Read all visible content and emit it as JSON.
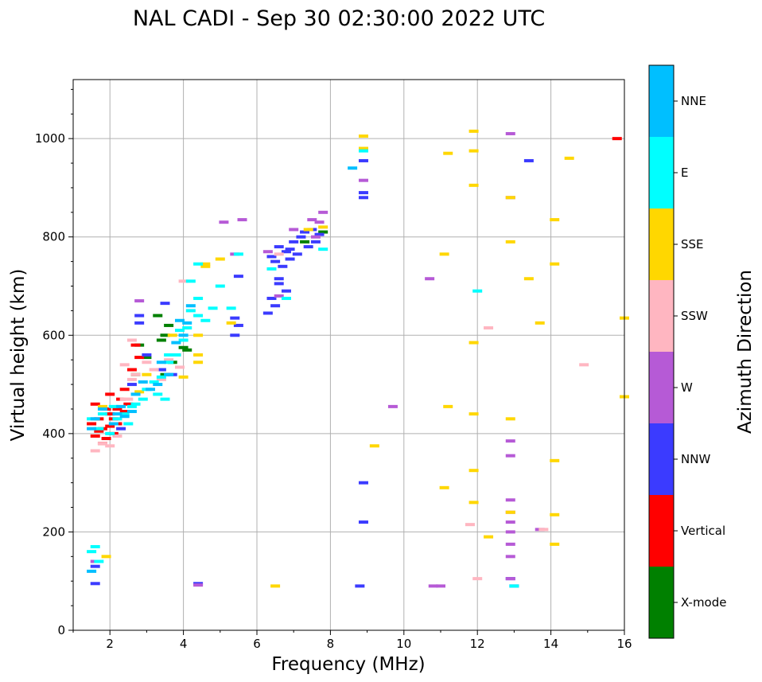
{
  "chart_data": {
    "type": "scatter",
    "title": "NAL CADI - Sep 30 02:30:00 2022 UTC",
    "xlabel": "Frequency (MHz)",
    "ylabel": "Virtual height (km)",
    "xlim": [
      1,
      16
    ],
    "ylim": [
      0,
      1120
    ],
    "grid": true,
    "x_ticks": [
      2,
      4,
      6,
      8,
      10,
      12,
      14,
      16
    ],
    "x_tick_labels": [
      "2",
      "4",
      "6",
      "8",
      "10",
      "12",
      "14",
      "16"
    ],
    "y_ticks": [
      0,
      200,
      400,
      600,
      800,
      1000
    ],
    "y_tick_labels": [
      "0",
      "200",
      "400",
      "600",
      "800",
      "1000"
    ],
    "colorbar": {
      "label": "Azimuth Direction",
      "categories": [
        "X-mode",
        "Vertical",
        "NNW",
        "W",
        "SSW",
        "SSE",
        "E",
        "NNE"
      ],
      "colors": [
        "#008000",
        "#ff0000",
        "#3b3bff",
        "#b65ad6",
        "#ffb6c1",
        "#ffd700",
        "#00ffff",
        "#00bfff"
      ]
    },
    "scatter_notes": "Ionogram echoes; x = frequency (MHz), y = virtual height (km), c = azimuth category. Dense traces are approximated.",
    "series": [
      {
        "name": "X-mode",
        "points": [
          [
            2.8,
            580
          ],
          [
            3.4,
            590
          ],
          [
            3.5,
            600
          ],
          [
            3.7,
            545
          ],
          [
            3.8,
            560
          ],
          [
            4.0,
            575
          ],
          [
            3.3,
            640
          ],
          [
            2.7,
            520
          ],
          [
            3.5,
            520
          ],
          [
            3.0,
            555
          ],
          [
            7.8,
            810
          ],
          [
            7.3,
            790
          ],
          [
            3.6,
            620
          ],
          [
            4.1,
            570
          ]
        ]
      },
      {
        "name": "Vertical",
        "points": [
          [
            1.5,
            420
          ],
          [
            1.6,
            395
          ],
          [
            1.7,
            430
          ],
          [
            1.8,
            410
          ],
          [
            1.9,
            450
          ],
          [
            2.0,
            440
          ],
          [
            2.1,
            400
          ],
          [
            2.2,
            420
          ],
          [
            2.3,
            470
          ],
          [
            2.4,
            490
          ],
          [
            1.6,
            460
          ],
          [
            2.0,
            480
          ],
          [
            1.8,
            380
          ],
          [
            2.5,
            460
          ],
          [
            2.6,
            530
          ],
          [
            2.7,
            580
          ],
          [
            2.8,
            555
          ],
          [
            2.0,
            415
          ],
          [
            2.2,
            450
          ],
          [
            1.7,
            405
          ],
          [
            15.8,
            1000
          ],
          [
            2.1,
            430
          ],
          [
            1.9,
            390
          ],
          [
            2.4,
            445
          ]
        ]
      },
      {
        "name": "NNW",
        "points": [
          [
            6.4,
            760
          ],
          [
            6.6,
            780
          ],
          [
            6.8,
            770
          ],
          [
            7.0,
            790
          ],
          [
            7.2,
            800
          ],
          [
            7.4,
            780
          ],
          [
            7.6,
            790
          ],
          [
            6.5,
            750
          ],
          [
            6.9,
            755
          ],
          [
            7.1,
            765
          ],
          [
            6.7,
            740
          ],
          [
            6.3,
            645
          ],
          [
            6.5,
            660
          ],
          [
            6.8,
            690
          ],
          [
            6.6,
            705
          ],
          [
            6.4,
            675
          ],
          [
            5.5,
            620
          ],
          [
            5.4,
            635
          ],
          [
            5.4,
            600
          ],
          [
            5.5,
            720
          ],
          [
            7.7,
            805
          ],
          [
            7.5,
            815
          ],
          [
            2.8,
            640
          ],
          [
            2.8,
            625
          ],
          [
            3.0,
            560
          ],
          [
            2.6,
            500
          ],
          [
            2.3,
            410
          ],
          [
            8.9,
            890
          ],
          [
            8.9,
            880
          ],
          [
            13.4,
            955
          ],
          [
            8.9,
            955
          ],
          [
            12.9,
            105
          ],
          [
            13.0,
            90
          ],
          [
            8.8,
            90
          ],
          [
            4.4,
            95
          ],
          [
            1.6,
            95
          ],
          [
            1.6,
            130
          ],
          [
            8.9,
            300
          ],
          [
            8.9,
            220
          ],
          [
            3.4,
            530
          ],
          [
            3.7,
            520
          ],
          [
            3.5,
            665
          ],
          [
            6.6,
            715
          ],
          [
            6.9,
            775
          ],
          [
            7.3,
            810
          ]
        ]
      },
      {
        "name": "W",
        "points": [
          [
            7.8,
            850
          ],
          [
            7.7,
            830
          ],
          [
            7.6,
            800
          ],
          [
            5.1,
            830
          ],
          [
            5.6,
            835
          ],
          [
            5.4,
            765
          ],
          [
            6.6,
            680
          ],
          [
            10.7,
            715
          ],
          [
            9.7,
            455
          ],
          [
            12.9,
            1010
          ],
          [
            12.9,
            880
          ],
          [
            12.9,
            385
          ],
          [
            12.9,
            355
          ],
          [
            12.9,
            265
          ],
          [
            12.9,
            240
          ],
          [
            12.9,
            220
          ],
          [
            12.9,
            200
          ],
          [
            12.9,
            175
          ],
          [
            12.9,
            150
          ],
          [
            12.9,
            105
          ],
          [
            13.7,
            205
          ],
          [
            10.8,
            90
          ],
          [
            11.0,
            90
          ],
          [
            8.9,
            915
          ],
          [
            4.4,
            92
          ],
          [
            2.8,
            670
          ],
          [
            1.6,
            140
          ],
          [
            7.0,
            815
          ],
          [
            7.5,
            835
          ],
          [
            6.3,
            770
          ]
        ]
      },
      {
        "name": "SSW",
        "points": [
          [
            1.6,
            365
          ],
          [
            1.8,
            380
          ],
          [
            2.0,
            375
          ],
          [
            2.2,
            395
          ],
          [
            2.4,
            470
          ],
          [
            2.5,
            470
          ],
          [
            2.6,
            510
          ],
          [
            2.7,
            520
          ],
          [
            3.0,
            545
          ],
          [
            3.2,
            530
          ],
          [
            3.4,
            510
          ],
          [
            3.6,
            550
          ],
          [
            3.9,
            535
          ],
          [
            4.0,
            710
          ],
          [
            12.3,
            615
          ],
          [
            14.9,
            540
          ],
          [
            11.8,
            215
          ],
          [
            12.0,
            105
          ],
          [
            12.9,
            240
          ],
          [
            13.8,
            205
          ],
          [
            6.6,
            765
          ],
          [
            2.6,
            590
          ],
          [
            2.4,
            540
          ]
        ]
      },
      {
        "name": "SSE",
        "points": [
          [
            8.9,
            1005
          ],
          [
            8.9,
            980
          ],
          [
            11.9,
            1015
          ],
          [
            11.9,
            975
          ],
          [
            11.2,
            970
          ],
          [
            11.9,
            905
          ],
          [
            12.9,
            880
          ],
          [
            14.5,
            960
          ],
          [
            14.1,
            835
          ],
          [
            14.1,
            745
          ],
          [
            13.4,
            715
          ],
          [
            13.7,
            625
          ],
          [
            11.1,
            765
          ],
          [
            12.9,
            790
          ],
          [
            11.9,
            585
          ],
          [
            11.2,
            455
          ],
          [
            11.9,
            440
          ],
          [
            12.9,
            430
          ],
          [
            14.1,
            345
          ],
          [
            11.9,
            325
          ],
          [
            11.1,
            290
          ],
          [
            11.9,
            260
          ],
          [
            12.9,
            240
          ],
          [
            14.1,
            235
          ],
          [
            12.3,
            190
          ],
          [
            14.1,
            175
          ],
          [
            9.2,
            375
          ],
          [
            16.0,
            635
          ],
          [
            16.0,
            475
          ],
          [
            7.8,
            820
          ],
          [
            6.5,
            90
          ],
          [
            1.9,
            150
          ],
          [
            4.4,
            560
          ],
          [
            4.4,
            600
          ],
          [
            4.4,
            545
          ],
          [
            5.0,
            755
          ],
          [
            4.6,
            745
          ],
          [
            5.3,
            625
          ],
          [
            4.0,
            515
          ],
          [
            3.7,
            600
          ],
          [
            3.0,
            520
          ],
          [
            2.8,
            485
          ],
          [
            1.8,
            455
          ],
          [
            7.4,
            815
          ],
          [
            4.6,
            740
          ]
        ]
      },
      {
        "name": "E",
        "points": [
          [
            2.0,
            400
          ],
          [
            2.2,
            430
          ],
          [
            2.4,
            440
          ],
          [
            2.5,
            420
          ],
          [
            2.6,
            455
          ],
          [
            2.9,
            470
          ],
          [
            3.0,
            490
          ],
          [
            3.2,
            505
          ],
          [
            3.4,
            515
          ],
          [
            3.6,
            545
          ],
          [
            3.8,
            560
          ],
          [
            4.0,
            590
          ],
          [
            4.1,
            615
          ],
          [
            4.2,
            650
          ],
          [
            4.4,
            675
          ],
          [
            4.6,
            630
          ],
          [
            5.0,
            700
          ],
          [
            5.5,
            765
          ],
          [
            6.4,
            735
          ],
          [
            6.8,
            675
          ],
          [
            7.8,
            775
          ],
          [
            1.5,
            430
          ],
          [
            1.7,
            410
          ],
          [
            1.8,
            440
          ],
          [
            2.1,
            455
          ],
          [
            3.3,
            480
          ],
          [
            3.9,
            610
          ],
          [
            4.2,
            710
          ],
          [
            4.4,
            745
          ],
          [
            4.8,
            655
          ],
          [
            5.3,
            655
          ],
          [
            8.9,
            975
          ],
          [
            12.0,
            690
          ],
          [
            13.0,
            90
          ],
          [
            1.5,
            160
          ],
          [
            1.6,
            170
          ],
          [
            1.7,
            140
          ],
          [
            4.4,
            640
          ],
          [
            3.5,
            470
          ],
          [
            2.7,
            460
          ],
          [
            3.6,
            560
          ]
        ]
      },
      {
        "name": "NNE",
        "points": [
          [
            8.6,
            940
          ],
          [
            1.6,
            430
          ],
          [
            1.8,
            450
          ],
          [
            2.1,
            420
          ],
          [
            2.4,
            435
          ],
          [
            2.3,
            455
          ],
          [
            2.7,
            480
          ],
          [
            3.1,
            490
          ],
          [
            3.3,
            500
          ],
          [
            3.6,
            520
          ],
          [
            3.8,
            585
          ],
          [
            4.0,
            600
          ],
          [
            4.1,
            625
          ],
          [
            4.2,
            660
          ],
          [
            3.9,
            630
          ],
          [
            2.9,
            505
          ],
          [
            2.2,
            440
          ],
          [
            1.5,
            410
          ],
          [
            3.4,
            545
          ],
          [
            2.6,
            445
          ],
          [
            1.5,
            120
          ]
        ]
      }
    ]
  }
}
